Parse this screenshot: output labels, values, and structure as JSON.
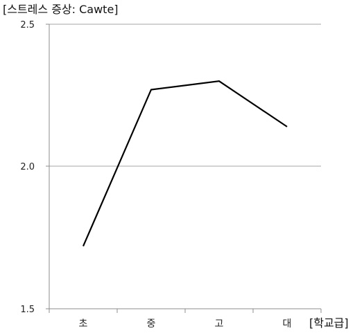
{
  "chart_data": {
    "type": "line",
    "ylabel": "[스트레스 증상: Cawte]",
    "xlabel": "[학교급]",
    "categories": [
      "초",
      "중",
      "고",
      "대"
    ],
    "series": [
      {
        "values": [
          1.72,
          2.27,
          2.3,
          2.14
        ],
        "color": "#000000"
      }
    ],
    "ylim": [
      1.5,
      2.5
    ],
    "yticks": [
      "1.5",
      "2.0",
      "2.5"
    ],
    "grid": true,
    "legend": "none"
  }
}
